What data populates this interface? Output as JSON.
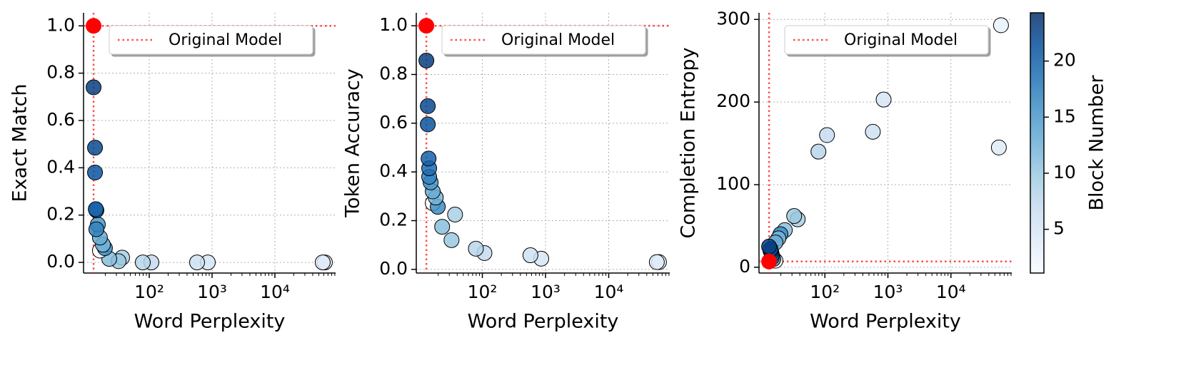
{
  "chart_data": [
    {
      "type": "scatter",
      "x_label": "Word Perplexity",
      "y_label": "Exact Match",
      "xscale": "log",
      "grid": true,
      "legend": "upper left",
      "colormap": "Blues",
      "xlim": [
        9,
        92500
      ],
      "xticks": [
        {
          "value": 100,
          "label": "10²"
        },
        {
          "value": 1000,
          "label": "10³"
        },
        {
          "value": 10000,
          "label": "10⁴"
        }
      ],
      "ylim": [
        -0.045,
        1.055
      ],
      "yticks": [
        {
          "value": 0,
          "label": "0.0"
        },
        {
          "value": 0.2,
          "label": "0.2"
        },
        {
          "value": 0.4,
          "label": "0.4"
        },
        {
          "value": 0.6,
          "label": "0.6"
        },
        {
          "value": 0.8,
          "label": "0.8"
        },
        {
          "value": 1,
          "label": "1.0"
        }
      ],
      "x": [
        13.0,
        13.7,
        13.7,
        14.1,
        14.4,
        14.4,
        15.2,
        16.4,
        18.3,
        19.7,
        16.4,
        23.1,
        32.5,
        37.0,
        79,
        108,
        577,
        855,
        57700,
        62400
      ],
      "values": [
        0.74,
        0.485,
        0.38,
        0.225,
        0.22,
        0.14,
        0.16,
        0.105,
        0.075,
        0.06,
        0.05,
        0.015,
        0.005,
        0.02,
        0,
        0,
        0,
        0,
        0,
        0
      ],
      "block": [
        23,
        22,
        21,
        20,
        19,
        17,
        15,
        13,
        12,
        16,
        1,
        11,
        10,
        9,
        8,
        7,
        6,
        5,
        4,
        3
      ],
      "reference": {
        "name": "Original Model",
        "x": 13,
        "y": 1,
        "color": "#ff0000"
      }
    },
    {
      "type": "scatter",
      "x_label": "Word Perplexity",
      "y_label": "Token Accuracy",
      "xscale": "log",
      "grid": true,
      "legend": "upper left",
      "colormap": "Blues",
      "xlim": [
        9,
        92500
      ],
      "xticks": [
        {
          "value": 100,
          "label": "10²"
        },
        {
          "value": 1000,
          "label": "10³"
        },
        {
          "value": 10000,
          "label": "10⁴"
        }
      ],
      "ylim": [
        -0.015,
        1.053
      ],
      "yticks": [
        {
          "value": 0,
          "label": "0.0"
        },
        {
          "value": 0.2,
          "label": "0.2"
        },
        {
          "value": 0.4,
          "label": "0.4"
        },
        {
          "value": 0.6,
          "label": "0.6"
        },
        {
          "value": 0.8,
          "label": "0.8"
        },
        {
          "value": 1,
          "label": "1.0"
        }
      ],
      "x": [
        13.0,
        13.7,
        13.7,
        14.1,
        14.4,
        14.4,
        15.2,
        16.4,
        18.3,
        19.7,
        16.4,
        23.1,
        32.5,
        37.0,
        79,
        108,
        577,
        855,
        57700,
        62400
      ],
      "values": [
        0.857,
        0.67,
        0.595,
        0.455,
        0.415,
        0.38,
        0.357,
        0.32,
        0.295,
        0.257,
        0.272,
        0.175,
        0.12,
        0.225,
        0.085,
        0.067,
        0.058,
        0.044,
        0.03,
        0.03
      ],
      "block": [
        23,
        22,
        21,
        20,
        19,
        17,
        15,
        13,
        12,
        16,
        1,
        11,
        10,
        9,
        8,
        7,
        6,
        5,
        4,
        3
      ],
      "reference": {
        "name": "Original Model",
        "x": 13,
        "y": 1,
        "color": "#ff0000"
      }
    },
    {
      "type": "scatter",
      "x_label": "Word Perplexity",
      "y_label": "Completion Entropy",
      "xscale": "log",
      "grid": true,
      "legend": "upper left",
      "colormap": "Blues",
      "xlim": [
        9,
        92500
      ],
      "xticks": [
        {
          "value": 100,
          "label": "10²"
        },
        {
          "value": 1000,
          "label": "10³"
        },
        {
          "value": 10000,
          "label": "10⁴"
        }
      ],
      "ylim": [
        -7,
        308
      ],
      "yticks": [
        0,
        100,
        200,
        300
      ],
      "x": [
        13.0,
        13.7,
        13.7,
        14.1,
        14.4,
        14.4,
        15.2,
        16.4,
        18.3,
        19.7,
        16.4,
        23.1,
        32.5,
        37.0,
        79,
        108,
        577,
        855,
        57700,
        62400
      ],
      "values": [
        25,
        22,
        20,
        18,
        15,
        12,
        10,
        30,
        35,
        40,
        8,
        45,
        62,
        58,
        140,
        160,
        164,
        203,
        145,
        293
      ],
      "block": [
        23,
        22,
        21,
        20,
        19,
        17,
        15,
        13,
        12,
        16,
        1,
        11,
        10,
        9,
        8,
        7,
        6,
        5,
        4,
        3
      ],
      "reference": {
        "name": "Original Model",
        "x": 13,
        "y": 7,
        "color": "#ff0000"
      }
    },
    {
      "type": "colorbar",
      "label": "Block Number",
      "colormap": "Blues",
      "clim": [
        1.1,
        24.3
      ],
      "ticks": [
        5,
        10,
        15,
        20
      ]
    }
  ]
}
